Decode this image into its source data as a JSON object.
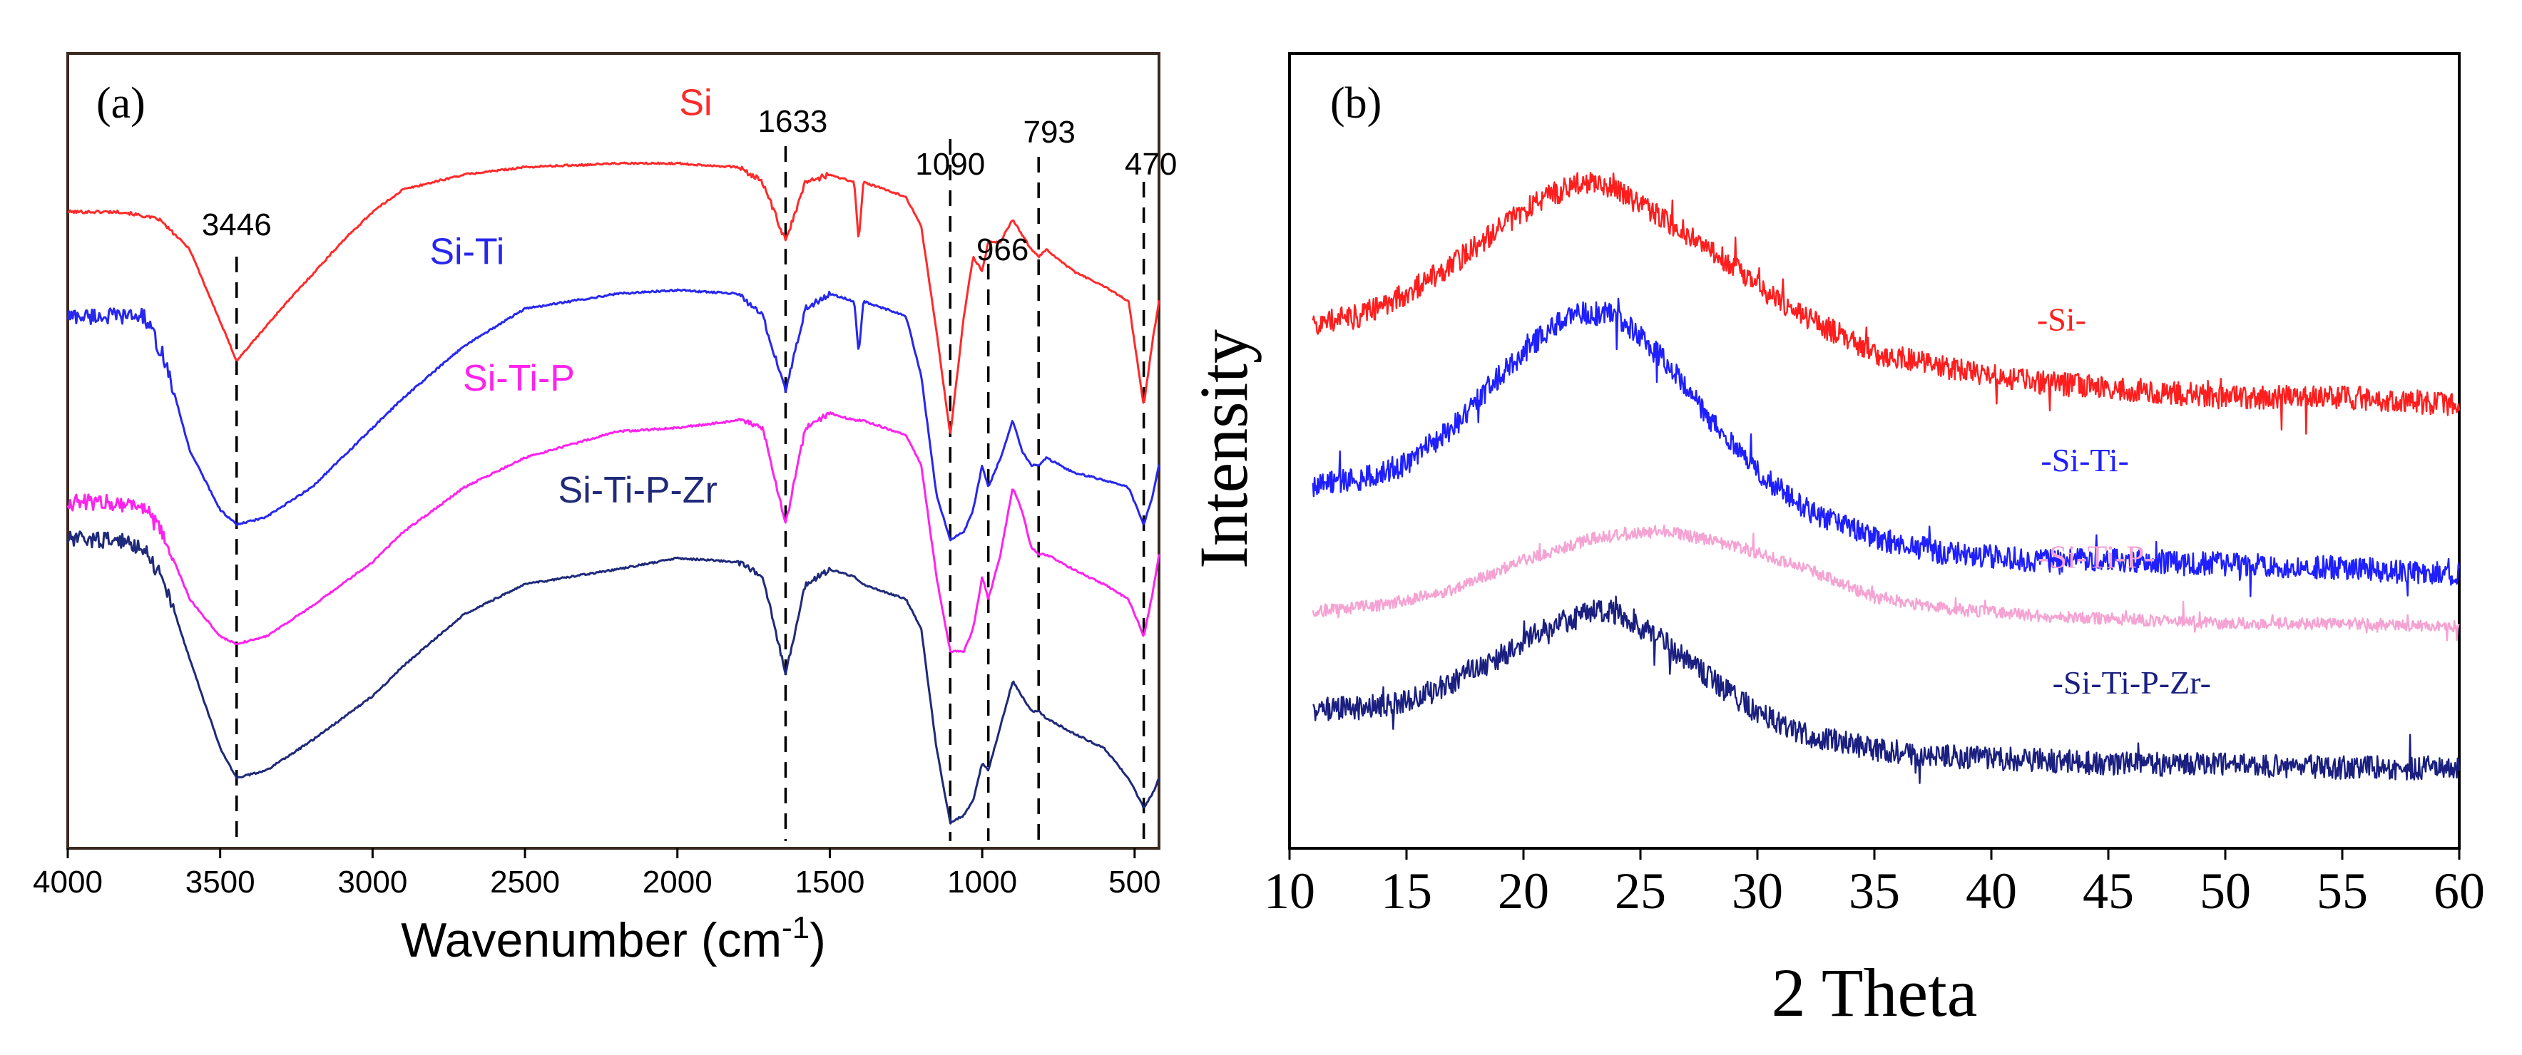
{
  "chart_data": [
    {
      "panel_label": "(a)",
      "type": "line",
      "title": "",
      "xlabel_main": "Wavenumber (cm",
      "xlabel_sup": "-1",
      "xlabel_end": ")",
      "ylabel": "",
      "xlim": [
        4000,
        420
      ],
      "ylim": [
        0,
        100
      ],
      "xticks": [
        "4000",
        "3500",
        "3000",
        "2500",
        "2000",
        "1500",
        "1000",
        "500"
      ],
      "xtick_values": [
        4000,
        3500,
        3000,
        2500,
        2000,
        1500,
        1000,
        500
      ],
      "peak_markers": [
        {
          "label": "3446",
          "x": 3446
        },
        {
          "label": "1633",
          "x": 1645
        },
        {
          "label": "1090",
          "x": 1105
        },
        {
          "label": "966",
          "x": 980
        },
        {
          "label": "793",
          "x": 815
        },
        {
          "label": "470",
          "x": 470
        }
      ],
      "series": [
        {
          "name": "Si",
          "color": "#ff2a2a",
          "label_x": 1940,
          "label_y": 97,
          "x": [
            4000,
            3850,
            3820,
            3700,
            3600,
            3446,
            3300,
            3100,
            3000,
            2900,
            2700,
            2500,
            2200,
            2000,
            1800,
            1720,
            1645,
            1580,
            1500,
            1420,
            1405,
            1390,
            1320,
            1250,
            1200,
            1150,
            1105,
            1060,
            1030,
            1000,
            980,
            940,
            900,
            870,
            840,
            815,
            790,
            700,
            600,
            520,
            470,
            440,
            420
          ],
          "y": [
            84,
            84,
            84,
            83,
            79,
            64,
            71,
            80,
            84,
            87,
            89,
            90,
            90.5,
            90.5,
            90,
            88,
            80,
            88,
            89,
            88,
            80,
            88,
            87,
            86,
            82,
            68,
            54,
            70,
            78,
            76,
            80,
            80,
            83,
            81,
            79,
            78,
            79,
            76,
            74,
            72,
            58,
            67,
            72
          ]
        },
        {
          "name": "Si-Ti",
          "color": "#2727ee",
          "label_x": 2690,
          "label_y": 77,
          "x": [
            4000,
            3850,
            3750,
            3680,
            3600,
            3500,
            3446,
            3350,
            3200,
            3000,
            2900,
            2700,
            2500,
            2200,
            2000,
            1800,
            1720,
            1645,
            1580,
            1500,
            1420,
            1405,
            1390,
            1320,
            1250,
            1200,
            1150,
            1105,
            1060,
            1030,
            1000,
            980,
            940,
            900,
            870,
            840,
            815,
            790,
            700,
            600,
            520,
            470,
            440,
            420
          ],
          "y": [
            70,
            70,
            70,
            64,
            52,
            44,
            42,
            43,
            47,
            55,
            59,
            66,
            71,
            73,
            73.5,
            73,
            70,
            60,
            71,
            73,
            72,
            65,
            72,
            71,
            70,
            62,
            46,
            40,
            41,
            44,
            50,
            47,
            51,
            56,
            52,
            50,
            50,
            51,
            49,
            48,
            47,
            42,
            46,
            50
          ]
        },
        {
          "name": "Si-Ti-P",
          "color": "#ff22ee",
          "label_x": 2520,
          "label_y": 60,
          "x": [
            4000,
            3850,
            3750,
            3680,
            3600,
            3500,
            3446,
            3350,
            3200,
            3000,
            2900,
            2700,
            2500,
            2200,
            2000,
            1800,
            1720,
            1645,
            1580,
            1500,
            1420,
            1390,
            1320,
            1250,
            1200,
            1150,
            1105,
            1060,
            1030,
            1000,
            980,
            940,
            900,
            870,
            840,
            815,
            790,
            700,
            600,
            520,
            470,
            440,
            420
          ],
          "y": [
            45,
            45,
            44.5,
            40,
            32,
            27,
            26,
            27,
            31,
            37,
            41,
            47,
            51,
            54.5,
            55,
            56,
            55,
            42,
            55,
            57,
            56,
            56,
            55,
            54,
            50,
            35,
            25,
            25,
            28,
            35,
            32,
            38,
            47,
            44,
            39,
            38,
            38,
            36,
            34,
            32,
            27,
            33,
            38
          ]
        },
        {
          "name": "Si-Ti-P-Zr",
          "color": "#1f2a7a",
          "label_x": 2130,
          "label_y": 45,
          "x": [
            4000,
            3850,
            3750,
            3680,
            3600,
            3500,
            3446,
            3350,
            3200,
            3000,
            2900,
            2700,
            2500,
            2200,
            2000,
            1800,
            1720,
            1645,
            1580,
            1500,
            1420,
            1390,
            1320,
            1250,
            1200,
            1150,
            1105,
            1060,
            1030,
            1000,
            980,
            940,
            900,
            870,
            840,
            815,
            790,
            700,
            600,
            520,
            470,
            440,
            420
          ],
          "y": [
            40,
            40,
            39,
            34,
            24,
            12,
            8,
            9,
            13,
            19,
            23,
            30,
            34,
            36,
            37.5,
            37,
            35,
            22,
            34,
            36,
            35,
            34,
            33,
            32,
            28,
            12,
            2,
            3,
            5,
            10,
            9,
            15,
            21,
            19,
            17,
            17,
            16,
            14,
            12,
            8,
            4,
            6,
            8
          ]
        }
      ]
    },
    {
      "panel_label": "(b)",
      "type": "line",
      "title": "",
      "xlabel": "2 Theta",
      "ylabel": "Intensity",
      "xlim": [
        10,
        60
      ],
      "ylim": [
        0,
        100
      ],
      "xticks": [
        "10",
        "15",
        "20",
        "25",
        "30",
        "35",
        "40",
        "45",
        "50",
        "55",
        "60"
      ],
      "xtick_values": [
        10,
        15,
        20,
        25,
        30,
        35,
        40,
        45,
        50,
        55,
        60
      ],
      "series": [
        {
          "name": "-Si-",
          "color": "#ff1e1e",
          "label_x": 43,
          "label_y": 66,
          "x": [
            11,
            13,
            15,
            17,
            19,
            21,
            22.5,
            24,
            26,
            28,
            30,
            32,
            35,
            38,
            42,
            46,
            50,
            55,
            60
          ],
          "y": [
            67,
            68,
            71,
            75,
            80,
            84,
            86,
            85,
            81,
            77,
            72,
            68,
            63,
            61,
            59,
            58,
            57,
            57,
            56
          ]
        },
        {
          "name": "-Si-Ti-",
          "color": "#1f1fff",
          "label_x": 44,
          "label_y": 47,
          "x": [
            11,
            13,
            15,
            17,
            19,
            21,
            22.5,
            24,
            26,
            28,
            30,
            32,
            35,
            38,
            42,
            46,
            50,
            55,
            60
          ],
          "y": [
            45,
            46,
            48,
            53,
            60,
            66,
            68.5,
            68,
            62,
            54,
            47,
            42,
            38,
            36,
            35,
            35,
            34.5,
            34,
            33
          ]
        },
        {
          "name": "-Si-Ti-P-",
          "color": "#f5a3d3",
          "label_x": 44.5,
          "label_y": 34,
          "x": [
            11,
            14,
            17,
            20,
            23,
            26,
            29,
            32,
            35,
            38,
            42,
            46,
            50,
            55,
            60
          ],
          "y": [
            28,
            29,
            31,
            35,
            38,
            39,
            37,
            34,
            30,
            28.5,
            27.5,
            27,
            26.5,
            26.5,
            26
          ]
        },
        {
          "name": "-Si-Ti-P-Zr-",
          "color": "#1a1f80",
          "label_x": 46,
          "label_y": 17,
          "x": [
            11,
            13,
            15,
            17,
            19,
            21,
            23,
            24,
            26,
            28,
            30,
            32,
            35,
            38,
            42,
            46,
            50,
            55,
            60
          ],
          "y": [
            15,
            15,
            16,
            18.5,
            22,
            26,
            28,
            28,
            24,
            19,
            14.5,
            11.5,
            9.5,
            8.5,
            8,
            7.5,
            7.5,
            7,
            7
          ]
        }
      ]
    }
  ]
}
